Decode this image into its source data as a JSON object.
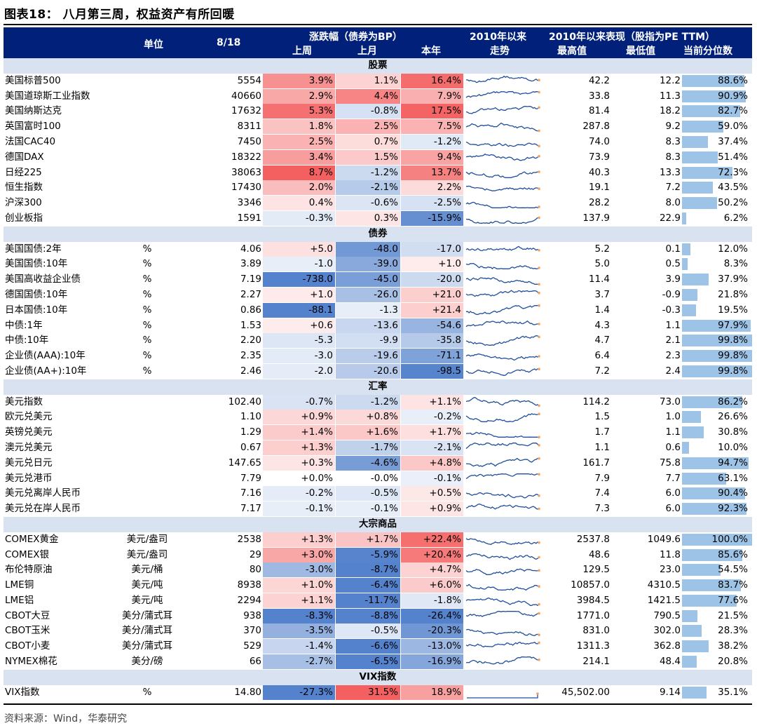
{
  "title": "图表18：  八月第三周，权益资产有所回暖",
  "source": "资料来源：Wind，华泰研究",
  "header": {
    "unit": "单位",
    "date": "8/18",
    "change": "涨跌幅（债券为BP）",
    "week": "上周",
    "month": "上月",
    "ytd": "本年",
    "since": "2010年以来",
    "trend": "走势",
    "perf": "2010年以来表现（股指为PE TTM）",
    "high": "最高值",
    "low": "最低值",
    "pctl": "当前分位数"
  },
  "colors": {
    "header_bg": "#00207a",
    "section_bg": "#d9e2f0",
    "pct_bar": "#9dc3e6",
    "line": "#1f4e9c",
    "marker": "#f4a460"
  },
  "sections": [
    {
      "name": "股票",
      "rows": [
        {
          "name": "美国标普500",
          "unit": "",
          "val": "5554",
          "w": "3.9%",
          "m": "1.1%",
          "y": "16.4%",
          "hi": "42.2",
          "lo": "12.2",
          "p": "88.6%",
          "wv": 3.9,
          "mv": 1.1,
          "yv": 16.4,
          "pv": 0.886
        },
        {
          "name": "美国道琼斯工业指数",
          "unit": "",
          "val": "40660",
          "w": "2.9%",
          "m": "4.4%",
          "y": "7.9%",
          "hi": "33.8",
          "lo": "11.3",
          "p": "90.9%",
          "wv": 2.9,
          "mv": 4.4,
          "yv": 7.9,
          "pv": 0.909
        },
        {
          "name": "美国纳斯达克",
          "unit": "",
          "val": "17632",
          "w": "5.3%",
          "m": "-0.8%",
          "y": "17.5%",
          "hi": "81.4",
          "lo": "18.2",
          "p": "82.7%",
          "wv": 5.3,
          "mv": -0.8,
          "yv": 17.5,
          "pv": 0.827
        },
        {
          "name": "英国富时100",
          "unit": "",
          "val": "8311",
          "w": "1.8%",
          "m": "2.5%",
          "y": "7.5%",
          "hi": "287.8",
          "lo": "9.2",
          "p": "59.0%",
          "wv": 1.8,
          "mv": 2.5,
          "yv": 7.5,
          "pv": 0.59
        },
        {
          "name": "法国CAC40",
          "unit": "",
          "val": "7450",
          "w": "2.5%",
          "m": "0.7%",
          "y": "-1.2%",
          "hi": "74.0",
          "lo": "8.3",
          "p": "37.4%",
          "wv": 2.5,
          "mv": 0.7,
          "yv": -1.2,
          "pv": 0.374
        },
        {
          "name": "德国DAX",
          "unit": "",
          "val": "18322",
          "w": "3.4%",
          "m": "1.5%",
          "y": "9.4%",
          "hi": "73.9",
          "lo": "8.3",
          "p": "51.4%",
          "wv": 3.4,
          "mv": 1.5,
          "yv": 9.4,
          "pv": 0.514
        },
        {
          "name": "日经225",
          "unit": "",
          "val": "38063",
          "w": "8.7%",
          "m": "-1.2%",
          "y": "13.7%",
          "hi": "40.3",
          "lo": "13.3",
          "p": "72.3%",
          "wv": 8.7,
          "mv": -1.2,
          "yv": 13.7,
          "pv": 0.723
        },
        {
          "name": "恒生指数",
          "unit": "",
          "val": "17430",
          "w": "2.0%",
          "m": "-2.1%",
          "y": "2.2%",
          "hi": "19.1",
          "lo": "7.2",
          "p": "43.5%",
          "wv": 2.0,
          "mv": -2.1,
          "yv": 2.2,
          "pv": 0.435
        },
        {
          "name": "沪深300",
          "unit": "",
          "val": "3346",
          "w": "0.4%",
          "m": "-0.6%",
          "y": "-2.5%",
          "hi": "28.2",
          "lo": "8.0",
          "p": "50.2%",
          "wv": 0.4,
          "mv": -0.6,
          "yv": -2.5,
          "pv": 0.502
        },
        {
          "name": "创业板指",
          "unit": "",
          "val": "1591",
          "w": "-0.3%",
          "m": "0.3%",
          "y": "-15.9%",
          "hi": "137.9",
          "lo": "22.9",
          "p": "6.2%",
          "wv": -0.3,
          "mv": 0.3,
          "yv": -15.9,
          "pv": 0.062
        }
      ]
    },
    {
      "name": "债券",
      "rows": [
        {
          "name": "美国国债:2年",
          "unit": "%",
          "val": "4.06",
          "w": "+5.0",
          "m": "-48.0",
          "y": "-17.0",
          "hi": "5.2",
          "lo": "0.1",
          "p": "12.0%",
          "wv": 5.0,
          "mv": -48.0,
          "yv": -17.0,
          "pv": 0.12
        },
        {
          "name": "美国国债:10年",
          "unit": "%",
          "val": "3.89",
          "w": "-1.0",
          "m": "-39.0",
          "y": "+1.0",
          "hi": "5.0",
          "lo": "0.5",
          "p": "8.3%",
          "wv": -1.0,
          "mv": -39.0,
          "yv": 1.0,
          "pv": 0.083
        },
        {
          "name": "美国高收益企业债",
          "unit": "%",
          "val": "7.19",
          "w": "-738.0",
          "m": "-45.0",
          "y": "-20.0",
          "hi": "11.4",
          "lo": "3.9",
          "p": "37.9%",
          "wv": -738.0,
          "mv": -45.0,
          "yv": -20.0,
          "pv": 0.379
        },
        {
          "name": "德国国债:10年",
          "unit": "%",
          "val": "2.27",
          "w": "+1.0",
          "m": "-26.0",
          "y": "+21.0",
          "hi": "3.7",
          "lo": "-0.9",
          "p": "21.8%",
          "wv": 1.0,
          "mv": -26.0,
          "yv": 21.0,
          "pv": 0.218
        },
        {
          "name": "日本国债:10年",
          "unit": "%",
          "val": "0.86",
          "w": "-88.1",
          "m": "-1.3",
          "y": "+21.4",
          "hi": "1.4",
          "lo": "-0.3",
          "p": "19.5%",
          "wv": -88.1,
          "mv": -1.3,
          "yv": 21.4,
          "pv": 0.195
        },
        {
          "name": "中债:1年",
          "unit": "%",
          "val": "1.53",
          "w": "+0.6",
          "m": "-13.6",
          "y": "-54.6",
          "hi": "4.3",
          "lo": "1.1",
          "p": "97.9%",
          "wv": 0.6,
          "mv": -13.6,
          "yv": -54.6,
          "pv": 0.979
        },
        {
          "name": "中债:10年",
          "unit": "%",
          "val": "2.20",
          "w": "-5.3",
          "m": "-9.9",
          "y": "-35.8",
          "hi": "4.7",
          "lo": "2.1",
          "p": "99.8%",
          "wv": -5.3,
          "mv": -9.9,
          "yv": -35.8,
          "pv": 0.998
        },
        {
          "name": "企业债(AAA):10年",
          "unit": "%",
          "val": "2.35",
          "w": "-3.0",
          "m": "-19.6",
          "y": "-71.1",
          "hi": "6.4",
          "lo": "2.3",
          "p": "99.8%",
          "wv": -3.0,
          "mv": -19.6,
          "yv": -71.1,
          "pv": 0.998
        },
        {
          "name": "企业债(AA+):10年",
          "unit": "%",
          "val": "2.46",
          "w": "-2.0",
          "m": "-20.6",
          "y": "-98.5",
          "hi": "7.2",
          "lo": "2.4",
          "p": "99.8%",
          "wv": -2.0,
          "mv": -20.6,
          "yv": -98.5,
          "pv": 0.998
        }
      ]
    },
    {
      "name": "汇率",
      "rows": [
        {
          "name": "美元指数",
          "unit": "",
          "val": "102.40",
          "w": "-0.7%",
          "m": "-1.2%",
          "y": "+1.1%",
          "hi": "114.2",
          "lo": "73.0",
          "p": "86.2%",
          "wv": -0.7,
          "mv": -1.2,
          "yv": 1.1,
          "pv": 0.862
        },
        {
          "name": "欧元兑美元",
          "unit": "",
          "val": "1.10",
          "w": "+0.9%",
          "m": "+0.8%",
          "y": "-0.2%",
          "hi": "1.5",
          "lo": "1.0",
          "p": "26.6%",
          "wv": 0.9,
          "mv": 0.8,
          "yv": -0.2,
          "pv": 0.266
        },
        {
          "name": "英镑兑美元",
          "unit": "",
          "val": "1.29",
          "w": "+1.4%",
          "m": "+1.6%",
          "y": "+1.7%",
          "hi": "1.7",
          "lo": "1.1",
          "p": "30.8%",
          "wv": 1.4,
          "mv": 1.6,
          "yv": 1.7,
          "pv": 0.308
        },
        {
          "name": "澳元兑美元",
          "unit": "",
          "val": "0.67",
          "w": "+1.3%",
          "m": "-1.7%",
          "y": "-2.1%",
          "hi": "1.1",
          "lo": "0.6",
          "p": "10.0%",
          "wv": 1.3,
          "mv": -1.7,
          "yv": -2.1,
          "pv": 0.1
        },
        {
          "name": "美元兑日元",
          "unit": "",
          "val": "147.65",
          "w": "+0.3%",
          "m": "-4.6%",
          "y": "+4.8%",
          "hi": "161.7",
          "lo": "75.8",
          "p": "94.7%",
          "wv": 0.3,
          "mv": -4.6,
          "yv": 4.8,
          "pv": 0.947
        },
        {
          "name": "美元兑港币",
          "unit": "",
          "val": "7.79",
          "w": "+0.0%",
          "m": "-0.0%",
          "y": "-0.1%",
          "hi": "7.9",
          "lo": "7.7",
          "p": "63.1%",
          "wv": 0.0,
          "mv": 0.0,
          "yv": -0.1,
          "pv": 0.631
        },
        {
          "name": "美元兑离岸人民币",
          "unit": "",
          "val": "7.16",
          "w": "-0.2%",
          "m": "-0.5%",
          "y": "+0.5%",
          "hi": "7.4",
          "lo": "6.0",
          "p": "90.4%",
          "wv": -0.2,
          "mv": -0.5,
          "yv": 0.5,
          "pv": 0.904
        },
        {
          "name": "美元兑在岸人民币",
          "unit": "",
          "val": "7.17",
          "w": "-0.1%",
          "m": "-0.1%",
          "y": "+0.9%",
          "hi": "7.3",
          "lo": "6.0",
          "p": "92.3%",
          "wv": -0.1,
          "mv": -0.1,
          "yv": 0.9,
          "pv": 0.923
        }
      ]
    },
    {
      "name": "大宗商品",
      "rows": [
        {
          "name": "COMEX黄金",
          "unit": "美元/盎司",
          "val": "2538",
          "w": "+1.3%",
          "m": "+1.7%",
          "y": "+22.4%",
          "hi": "2537.8",
          "lo": "1049.6",
          "p": "100.0%",
          "wv": 1.3,
          "mv": 1.7,
          "yv": 22.4,
          "pv": 1.0
        },
        {
          "name": "COMEX银",
          "unit": "美元/盎司",
          "val": "29",
          "w": "+3.0%",
          "m": "-5.9%",
          "y": "+20.4%",
          "hi": "48.6",
          "lo": "11.8",
          "p": "85.6%",
          "wv": 3.0,
          "mv": -5.9,
          "yv": 20.4,
          "pv": 0.856
        },
        {
          "name": "布伦特原油",
          "unit": "美元/桶",
          "val": "80",
          "w": "-3.0%",
          "m": "-8.7%",
          "y": "+4.7%",
          "hi": "129.5",
          "lo": "23.0",
          "p": "54.5%",
          "wv": -3.0,
          "mv": -8.7,
          "yv": 4.7,
          "pv": 0.545
        },
        {
          "name": "LME铜",
          "unit": "美元/吨",
          "val": "8938",
          "w": "+1.0%",
          "m": "-6.4%",
          "y": "+6.0%",
          "hi": "10857.0",
          "lo": "4310.5",
          "p": "83.7%",
          "wv": 1.0,
          "mv": -6.4,
          "yv": 6.0,
          "pv": 0.837
        },
        {
          "name": "LME铝",
          "unit": "美元/吨",
          "val": "2294",
          "w": "+1.1%",
          "m": "-11.7%",
          "y": "-1.8%",
          "hi": "3984.5",
          "lo": "1421.5",
          "p": "77.6%",
          "wv": 1.1,
          "mv": -11.7,
          "yv": -1.8,
          "pv": 0.776
        },
        {
          "name": "CBOT大豆",
          "unit": "美分/蒲式耳",
          "val": "938",
          "w": "-8.3%",
          "m": "-8.8%",
          "y": "-26.4%",
          "hi": "1771.0",
          "lo": "790.5",
          "p": "21.5%",
          "wv": -8.3,
          "mv": -8.8,
          "yv": -26.4,
          "pv": 0.215
        },
        {
          "name": "CBOT玉米",
          "unit": "美分/蒲式耳",
          "val": "370",
          "w": "-3.5%",
          "m": "-0.5%",
          "y": "-20.3%",
          "hi": "831.0",
          "lo": "302.0",
          "p": "28.3%",
          "wv": -3.5,
          "mv": -0.5,
          "yv": -20.3,
          "pv": 0.283
        },
        {
          "name": "CBOT小麦",
          "unit": "美分/蒲式耳",
          "val": "529",
          "w": "-1.4%",
          "m": "-6.6%",
          "y": "-13.0%",
          "hi": "1311.3",
          "lo": "362.8",
          "p": "38.2%",
          "wv": -1.4,
          "mv": -6.6,
          "yv": -13.0,
          "pv": 0.382
        },
        {
          "name": "NYMEX棉花",
          "unit": "美分/磅",
          "val": "66",
          "w": "-2.7%",
          "m": "-6.5%",
          "y": "-16.9%",
          "hi": "214.1",
          "lo": "48.4",
          "p": "20.8%",
          "wv": -2.7,
          "mv": -6.5,
          "yv": -16.9,
          "pv": 0.208
        }
      ]
    },
    {
      "name": "VIX指数",
      "rows": [
        {
          "name": "VIX指数",
          "unit": "%",
          "val": "14.80",
          "w": "-27.3%",
          "m": "31.5%",
          "y": "18.9%",
          "hi": "45,502.00",
          "lo": "9.14",
          "p": "35.1%",
          "wv": -27.3,
          "mv": 31.5,
          "yv": 18.9,
          "pv": 0.351
        }
      ]
    }
  ]
}
